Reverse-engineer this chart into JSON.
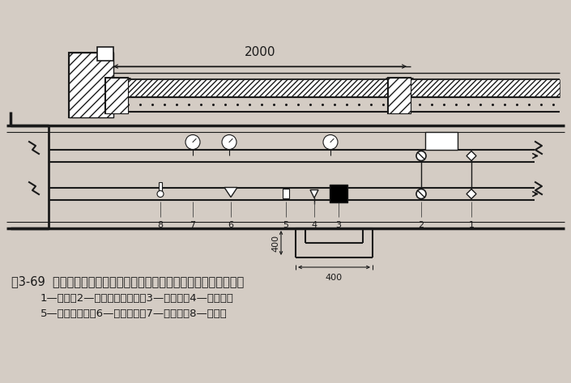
{
  "title_line1": "图3-69  带热量表建筑物采暖入口装置安装示意图（室外地沟内安装）",
  "title_line2": "1—闸阀；2—蝶阀（或闸阀）；3—热量表；4—泄水阀；",
  "title_line3": "5—温度传感器；6—水过滤器；7—压力表；8—温度计",
  "bg_color": "#d4ccc4",
  "line_color": "#1a1a1a",
  "dim_2000": "2000",
  "dim_400_v": "400",
  "dim_400_h": "400",
  "figsize": [
    7.05,
    4.73
  ],
  "dpi": 100
}
